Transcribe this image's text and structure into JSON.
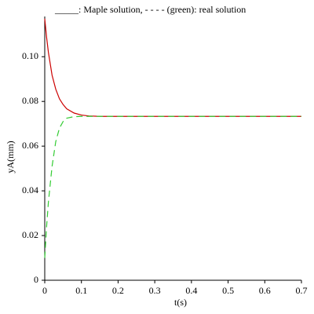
{
  "chart_data": {
    "type": "line",
    "title": "_____: Maple solution,  - - - - (green): real solution",
    "x_label": "t(s)",
    "y_label": "yA(mm)",
    "x": [
      0,
      0.005,
      0.01,
      0.02,
      0.03,
      0.04,
      0.05,
      0.06,
      0.08,
      0.1,
      0.12,
      0.15,
      0.2,
      0.3,
      0.4,
      0.5,
      0.6,
      0.7
    ],
    "series": [
      {
        "color": "#cc0000",
        "dash": false,
        "values": [
          0.117,
          0.1087,
          0.1019,
          0.0917,
          0.0855,
          0.0812,
          0.0786,
          0.0767,
          0.0748,
          0.0739,
          0.0735,
          0.0733,
          0.0733,
          0.0733,
          0.0733,
          0.0733,
          0.0733,
          0.0733
        ]
      },
      {
        "color": "#33cc33",
        "dash": true,
        "values": [
          0.01,
          0.024,
          0.035,
          0.051,
          0.062,
          0.068,
          0.071,
          0.0725,
          0.0732,
          0.0733,
          0.0733,
          0.0733,
          0.0733,
          0.0733,
          0.0733,
          0.0733,
          0.0733,
          0.0733
        ]
      }
    ],
    "xlim": [
      0,
      0.7
    ],
    "ylim": [
      0,
      0.118
    ],
    "xticks": [
      0,
      0.1,
      0.2,
      0.3,
      0.4,
      0.5,
      0.6,
      0.7
    ],
    "yticks": [
      0,
      0.02,
      0.04,
      0.06,
      {
        "value": 0.1,
        "label": "0.10"
      },
      0.08
    ]
  }
}
